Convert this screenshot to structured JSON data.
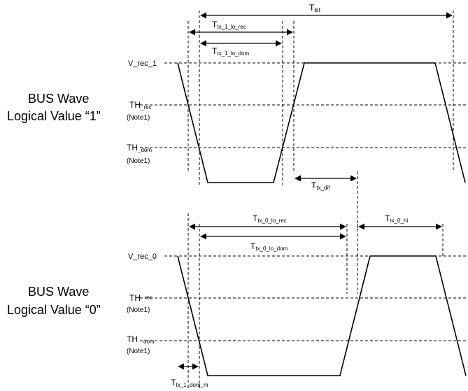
{
  "wave1": {
    "title_line1": "BUS Wave",
    "title_line2": "Logical Value “1”",
    "v_rec": "V_rec_1",
    "th_rec_main": "TH",
    "th_rec_sub": "_rec",
    "th_rec_note": "(Note1)",
    "th_dom_main": "TH",
    "th_dom_sub": "_dom",
    "th_dom_note": "(Note1)",
    "tbit_main": "T",
    "tbit_sub": "bit",
    "lo_rec_main": "T",
    "lo_rec_sub": "tx_1_lo_rec",
    "lo_dom_main": "T",
    "lo_dom_sub": "tx_1_lo_dom",
    "dif_main": "T",
    "dif_sub": "tx_dif"
  },
  "wave0": {
    "title_line1": "BUS Wave",
    "title_line2": "Logical Value “0”",
    "v_rec": "V_rec_0",
    "th_rec_main": "TH",
    "th_rec_sub": "rec",
    "th_rec_note": "(Note1)",
    "th_dom_main": "TH",
    "th_dom_sub": "dom",
    "th_dom_note": "(Note1)",
    "lo_rec_main": "T",
    "lo_rec_sub": "tx_0_lo_rec",
    "lo_dom_main": "T",
    "lo_dom_sub": "tx_0_lo_dom",
    "hi_main": "T",
    "hi_sub": "tx_0_hi",
    "dom_m_main": "T",
    "dom_m_sub": "tx_1_dom_m"
  }
}
